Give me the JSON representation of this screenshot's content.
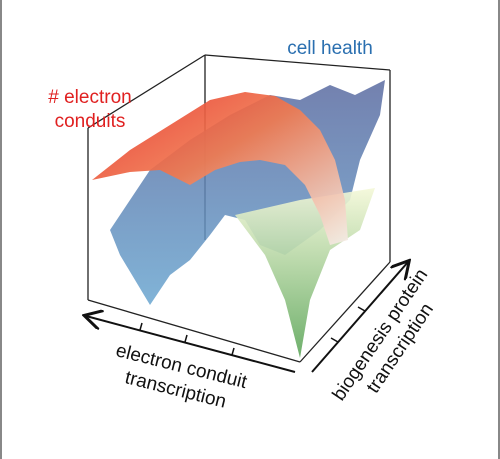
{
  "labels": {
    "cell_health": "cell health",
    "electron_conduits": [
      "# electron",
      "conduits"
    ],
    "x_axis": [
      "electron conduit",
      "transcription"
    ],
    "y_axis": [
      "biogenesis protein",
      "transcription"
    ]
  }
}
